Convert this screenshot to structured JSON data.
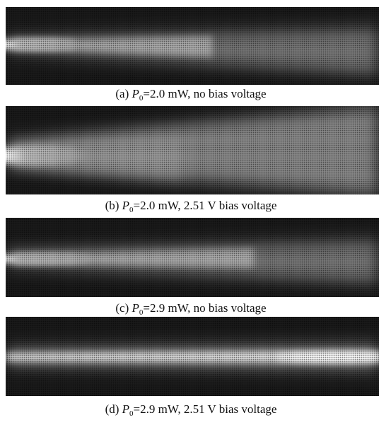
{
  "figure": {
    "panels": [
      {
        "label": "(a) ",
        "symbol": "P",
        "subscript": "0",
        "text": "=2.0 mW, no bias voltage"
      },
      {
        "label": "(b) ",
        "symbol": "P",
        "subscript": "0",
        "text": "=2.0 mW, 2.51 V bias voltage"
      },
      {
        "label": "(c) ",
        "symbol": "P",
        "subscript": "0",
        "text": "=2.9 mW, no bias voltage"
      },
      {
        "label": "(d) ",
        "symbol": "P",
        "subscript": "0",
        "text": "=2.9 mW, 2.51 V bias voltage"
      }
    ]
  }
}
